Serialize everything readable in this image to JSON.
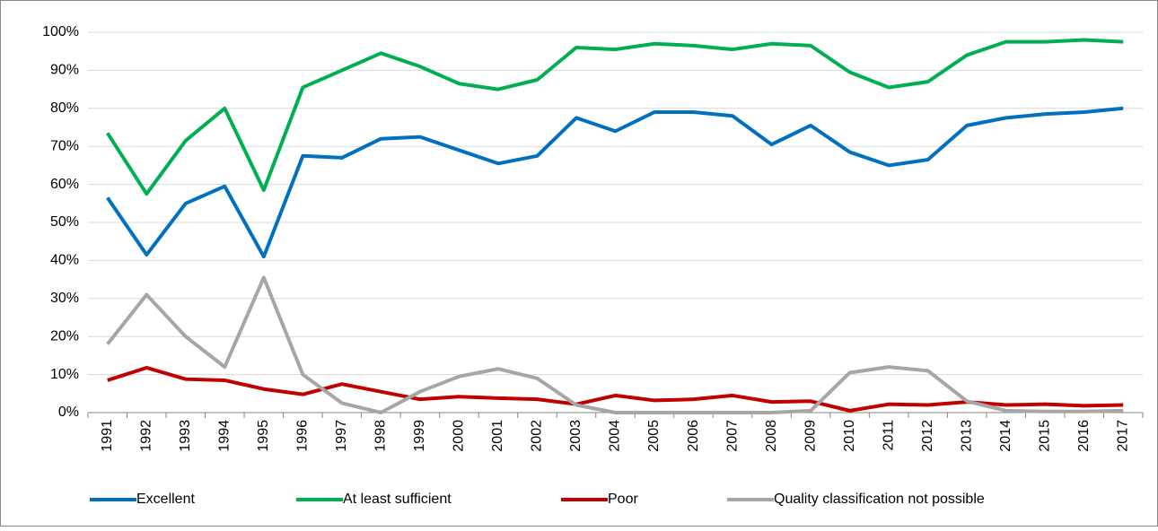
{
  "chart_data": {
    "type": "line",
    "categories": [
      "1991",
      "1992",
      "1993",
      "1994",
      "1995",
      "1996",
      "1997",
      "1998",
      "1999",
      "2000",
      "2001",
      "2002",
      "2003",
      "2004",
      "2005",
      "2006",
      "2007",
      "2008",
      "2009",
      "2010",
      "2011",
      "2012",
      "2013",
      "2014",
      "2015",
      "2016",
      "2017"
    ],
    "series": [
      {
        "name": "Excellent",
        "color": "#0070c0",
        "values": [
          56.5,
          41.5,
          55,
          59.5,
          41,
          67.5,
          67,
          72,
          72.5,
          69,
          65.5,
          67.5,
          77.5,
          74,
          79,
          79,
          78,
          70.5,
          75.5,
          68.5,
          65,
          66.5,
          75.5,
          77.5,
          78.5,
          79,
          80
        ]
      },
      {
        "name": "At least sufficient",
        "color": "#00b050",
        "values": [
          73.5,
          57.5,
          71.5,
          80,
          58.5,
          85.5,
          90,
          94.5,
          91,
          86.5,
          85,
          87.5,
          96,
          95.5,
          97,
          96.5,
          95.5,
          97,
          96.5,
          89.5,
          85.5,
          87,
          94,
          97.5,
          97.5,
          98,
          97.5
        ]
      },
      {
        "name": "Poor",
        "color": "#c00000",
        "values": [
          8.5,
          11.8,
          8.8,
          8.5,
          6.2,
          4.8,
          7.5,
          5.5,
          3.5,
          4.2,
          3.8,
          3.5,
          2.2,
          4.5,
          3.2,
          3.5,
          4.5,
          2.8,
          3,
          0.5,
          2.2,
          2,
          2.8,
          2,
          2.2,
          1.8,
          2
        ]
      },
      {
        "name": "Quality classification not possible",
        "color": "#a6a6a6",
        "values": [
          18,
          31,
          20,
          12,
          35.5,
          10,
          2.5,
          0,
          5.5,
          9.5,
          11.5,
          9,
          2,
          0,
          0,
          0,
          0,
          0,
          0.5,
          10.5,
          12,
          11,
          3,
          0.5,
          0.3,
          0.3,
          0.5
        ]
      }
    ],
    "ylim": [
      0,
      100
    ],
    "yticks": [
      {
        "value": 0,
        "label": "0%"
      },
      {
        "value": 10,
        "label": "10%"
      },
      {
        "value": 20,
        "label": "20%"
      },
      {
        "value": 30,
        "label": "30%"
      },
      {
        "value": 40,
        "label": "40%"
      },
      {
        "value": 50,
        "label": "50%"
      },
      {
        "value": 60,
        "label": "60%"
      },
      {
        "value": 70,
        "label": "70%"
      },
      {
        "value": 80,
        "label": "80%"
      },
      {
        "value": 90,
        "label": "90%"
      },
      {
        "value": 100,
        "label": "100%"
      }
    ],
    "grid": true,
    "legend": "bottom"
  }
}
